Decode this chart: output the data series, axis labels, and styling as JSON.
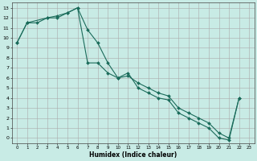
{
  "xlabel": "Humidex (Indice chaleur)",
  "xlim": [
    -0.5,
    23.5
  ],
  "ylim": [
    -0.5,
    13.5
  ],
  "xticks": [
    0,
    1,
    2,
    3,
    4,
    5,
    6,
    7,
    8,
    9,
    10,
    11,
    12,
    13,
    14,
    15,
    16,
    17,
    18,
    19,
    20,
    21,
    22,
    23
  ],
  "yticks": [
    0,
    1,
    2,
    3,
    4,
    5,
    6,
    7,
    8,
    9,
    10,
    11,
    12,
    13
  ],
  "line_color": "#1a6b5a",
  "bg_color": "#c8ebe5",
  "grid_color": "#aaaaaa",
  "line1_x": [
    0,
    1,
    2,
    3,
    4,
    5,
    6,
    7,
    8,
    9,
    10,
    11,
    12,
    13,
    14,
    15,
    16,
    17,
    18,
    19,
    20,
    21,
    22
  ],
  "line1_y": [
    9.5,
    11.5,
    11.5,
    12,
    12.2,
    12.5,
    13.0,
    10.8,
    9.5,
    7.5,
    6.0,
    6.2,
    5.5,
    5.0,
    4.5,
    4.2,
    3.0,
    2.5,
    2.0,
    1.5,
    0.5,
    0.0,
    4.0
  ],
  "line2_x": [
    0,
    1,
    3,
    4,
    5,
    6,
    7,
    8,
    9,
    10,
    11,
    12,
    13,
    14,
    15,
    16,
    17,
    18,
    19,
    20,
    21,
    22
  ],
  "line2_y": [
    9.5,
    11.5,
    12.0,
    12.0,
    12.5,
    13.0,
    7.5,
    7.5,
    6.5,
    6.0,
    6.5,
    5.0,
    4.5,
    4.0,
    3.8,
    2.5,
    2.0,
    1.5,
    1.0,
    0.0,
    -0.2,
    4.0
  ]
}
